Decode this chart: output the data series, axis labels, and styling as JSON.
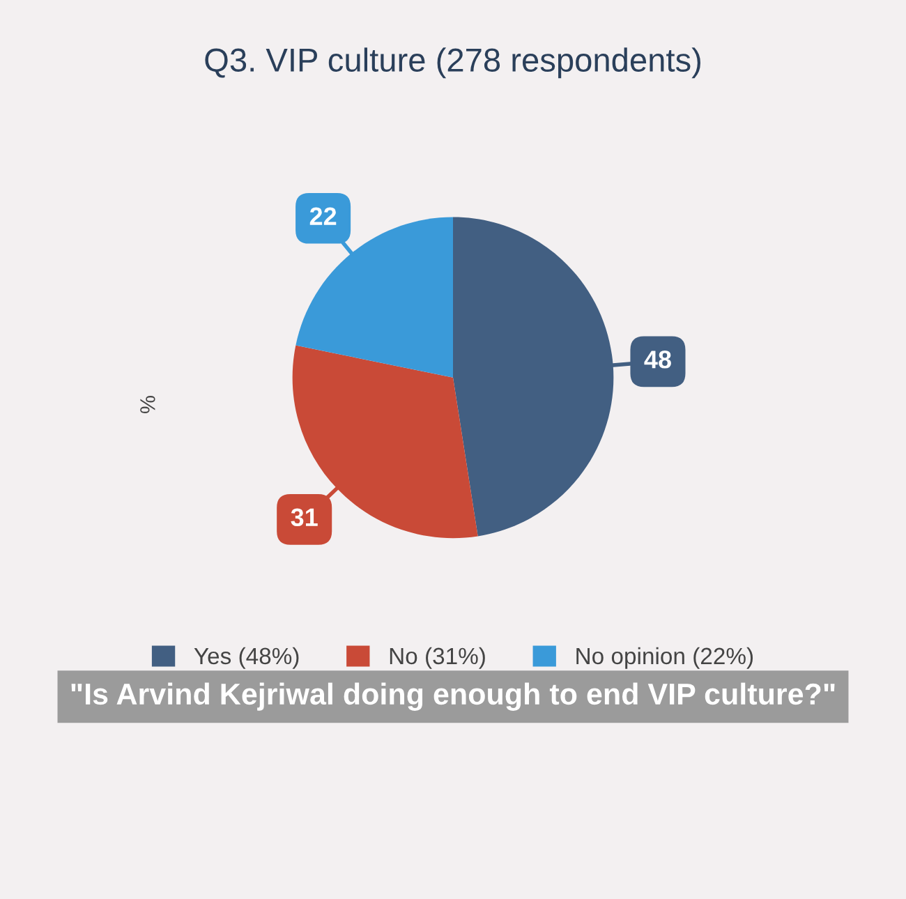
{
  "chart_data": {
    "type": "pie",
    "title": "Q3. VIP culture (278 respondents)",
    "ylabel": "%",
    "categories": [
      "Yes (48%)",
      "No (31%)",
      "No opinion (22%)"
    ],
    "values": [
      48,
      31,
      22
    ],
    "colors": [
      "#425f82",
      "#c94a37",
      "#3a9ad9"
    ],
    "data_labels": true,
    "legend": "bottom",
    "annotations": [
      "\"Is Arvind Kejriwal doing enough to end VIP culture?\""
    ]
  }
}
